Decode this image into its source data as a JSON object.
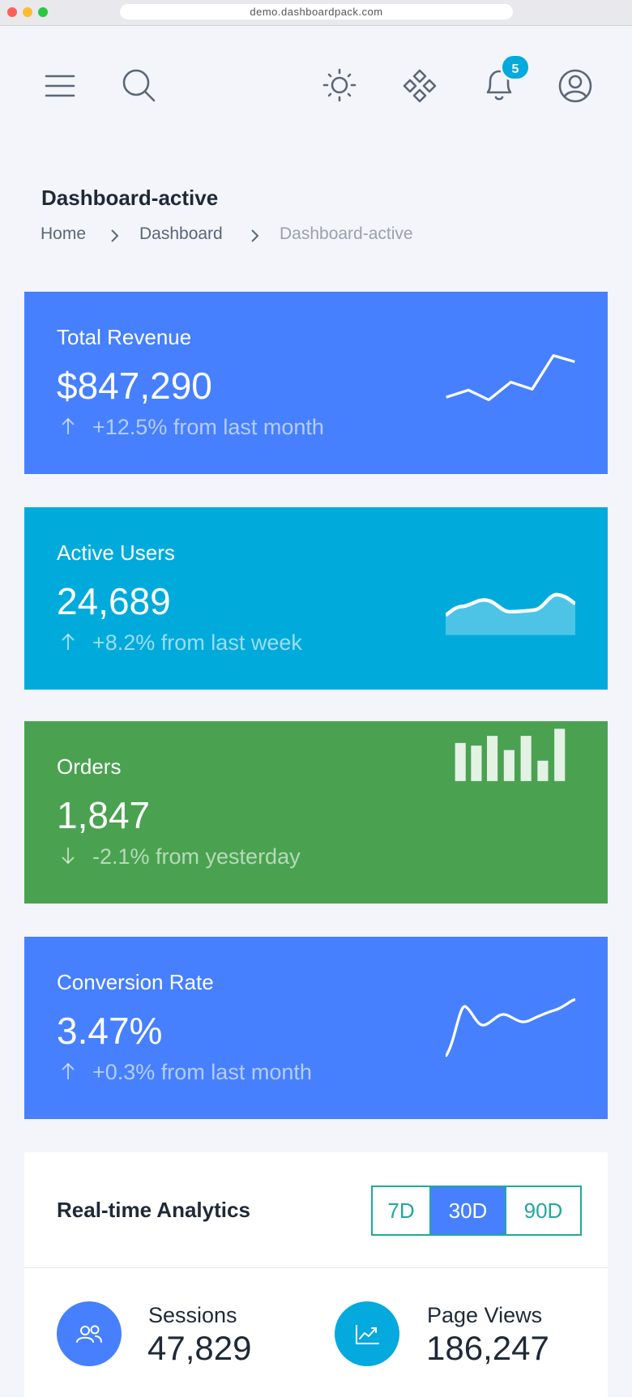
{
  "browser": {
    "url": "demo.dashboardpack.com"
  },
  "header": {
    "notification_count": 5
  },
  "page": {
    "title": "Dashboard-active",
    "breadcrumb": [
      "Home",
      "Dashboard",
      "Dashboard-active"
    ]
  },
  "cards": [
    {
      "title": "Total Revenue",
      "value": "$847,290",
      "change": "+12.5% from last month"
    },
    {
      "title": "Active Users",
      "value": "24,689",
      "change": "+8.2% from last week"
    },
    {
      "title": "Orders",
      "value": "1,847",
      "change": "-2.1% from yesterday"
    },
    {
      "title": "Conversion Rate",
      "value": "3.47%",
      "change": "+0.3% from last month"
    }
  ],
  "analytics": {
    "title": "Real-time Analytics",
    "ranges": [
      "7D",
      "30D",
      "90D"
    ],
    "active_range": "30D",
    "metrics": [
      {
        "label": "Sessions",
        "value": "47,829"
      },
      {
        "label": "Page Views",
        "value": "186,247"
      }
    ]
  }
}
